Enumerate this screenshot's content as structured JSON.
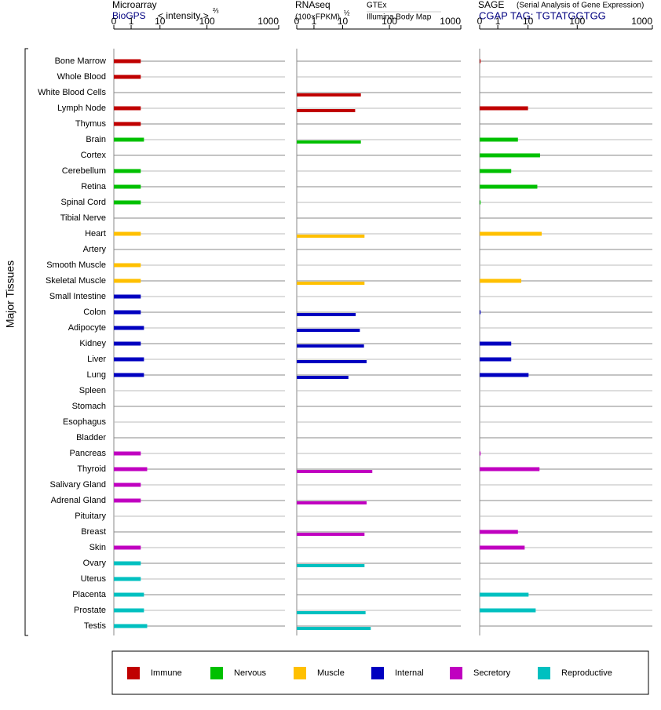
{
  "chart_data": {
    "type": "bar",
    "y_label": "Major Tissues",
    "categories": [
      "Bone Marrow",
      "Whole Blood",
      "White Blood Cells",
      "Lymph Node",
      "Thymus",
      "Brain",
      "Cortex",
      "Cerebellum",
      "Retina",
      "Spinal Cord",
      "Tibial Nerve",
      "Heart",
      "Artery",
      "Smooth Muscle",
      "Skeletal Muscle",
      "Small Intestine",
      "Colon",
      "Adipocyte",
      "Kidney",
      "Liver",
      "Lung",
      "Spleen",
      "Stomach",
      "Esophagus",
      "Bladder",
      "Pancreas",
      "Thyroid",
      "Salivary Gland",
      "Adrenal Gland",
      "Pituitary",
      "Breast",
      "Skin",
      "Ovary",
      "Uterus",
      "Placenta",
      "Prostate",
      "Testis"
    ],
    "groups": [
      {
        "name": "Immune",
        "color": "#c00000"
      },
      {
        "name": "Nervous",
        "color": "#00c000"
      },
      {
        "name": "Muscle",
        "color": "#ffc000"
      },
      {
        "name": "Internal",
        "color": "#0000c0"
      },
      {
        "name": "Secretory",
        "color": "#c000c0"
      },
      {
        "name": "Reproductive",
        "color": "#00c0c0"
      }
    ],
    "category_groups": [
      0,
      0,
      0,
      0,
      0,
      1,
      1,
      1,
      1,
      1,
      1,
      2,
      2,
      2,
      2,
      3,
      3,
      3,
      3,
      3,
      3,
      3,
      3,
      3,
      3,
      4,
      4,
      4,
      4,
      4,
      4,
      4,
      5,
      5,
      5,
      5,
      5
    ],
    "panels": [
      {
        "title": "Microarray",
        "source": "BioGPS",
        "axis_label": "< intensity >",
        "exponent": "⅔",
        "xlim": [
          0,
          1000
        ],
        "xticks": [
          0,
          1,
          10,
          100,
          1000
        ],
        "values": [
          4,
          4,
          null,
          4,
          4,
          5,
          null,
          4,
          4,
          4,
          null,
          4,
          null,
          4,
          4,
          4,
          4,
          5,
          4,
          5,
          5,
          null,
          null,
          null,
          null,
          4,
          6,
          4,
          4,
          null,
          null,
          4,
          4,
          4,
          5,
          5,
          6
        ]
      },
      {
        "title": "RNAseq",
        "axis_label": "(100×FPKM)",
        "exponent": "½",
        "source": "GTEx",
        "source2": "Illumina Body Map",
        "xlim": [
          0,
          1000
        ],
        "xticks": [
          0,
          1,
          10,
          100,
          1000
        ],
        "values": [
          null,
          null,
          45,
          34,
          null,
          45,
          null,
          null,
          null,
          null,
          null,
          52,
          null,
          null,
          52,
          null,
          35,
          43,
          51,
          56,
          21,
          null,
          null,
          null,
          null,
          null,
          67,
          null,
          56,
          null,
          52,
          null,
          52,
          null,
          null,
          54,
          64
        ]
      },
      {
        "title": "SAGE",
        "note": "(Serial Analysis of Gene Expression)",
        "source": "CGAP TAG: TGTATGGTGG",
        "xlim": [
          0,
          1000
        ],
        "xticks": [
          0,
          1,
          10,
          100,
          1000
        ],
        "values": [
          0.05,
          null,
          null,
          10,
          null,
          7,
          32,
          5,
          27,
          0.05,
          null,
          35,
          null,
          null,
          8,
          null,
          0.05,
          null,
          5,
          5,
          11,
          null,
          null,
          null,
          null,
          0.05,
          31,
          null,
          null,
          null,
          7,
          9,
          null,
          null,
          11,
          24,
          null
        ]
      }
    ]
  }
}
